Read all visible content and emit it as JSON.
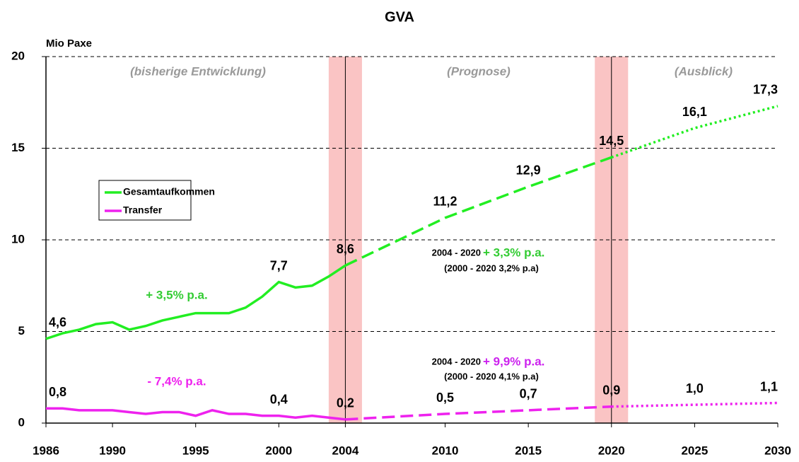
{
  "chart_data": {
    "type": "line",
    "title": "GVA",
    "y_label": "Mio Paxe",
    "xlim": [
      1986,
      2030
    ],
    "xticks": [
      1986,
      1990,
      1995,
      2000,
      2004,
      2010,
      2015,
      2020,
      2025,
      2030
    ],
    "ylim": [
      0,
      20
    ],
    "yticks": [
      0,
      5,
      10,
      15,
      20
    ],
    "grid": true,
    "vlines": [
      2004,
      2020
    ],
    "line_styles": [
      "solid",
      "dashed",
      "dotted"
    ],
    "shaded_bands": [
      [
        2003,
        2005
      ],
      [
        2019,
        2021
      ]
    ],
    "band_color": "#fac4c4",
    "legend": "left",
    "series": [
      {
        "name": "Gesamtaufkommen",
        "color": "#22ee22",
        "x": [
          1986,
          1987,
          1988,
          1989,
          1990,
          1991,
          1992,
          1993,
          1994,
          1995,
          1996,
          1997,
          1998,
          1999,
          2000,
          2001,
          2002,
          2003,
          2004,
          2010,
          2015,
          2020,
          2025,
          2030
        ],
        "values": [
          4.6,
          4.9,
          5.1,
          5.4,
          5.5,
          5.1,
          5.3,
          5.6,
          5.8,
          6.0,
          6.0,
          6.0,
          6.3,
          6.9,
          7.7,
          7.4,
          7.5,
          8.0,
          8.6,
          11.2,
          12.9,
          14.5,
          16.1,
          17.3
        ],
        "value_labels": [
          "4,6",
          null,
          null,
          null,
          null,
          null,
          null,
          null,
          null,
          null,
          null,
          null,
          null,
          null,
          "7,7",
          null,
          null,
          null,
          "8,6",
          "11,2",
          "12,9",
          "14,5",
          "16,1",
          "17,3"
        ]
      },
      {
        "name": "Transfer",
        "color": "#ee22ee",
        "x": [
          1986,
          1987,
          1988,
          1989,
          1990,
          1991,
          1992,
          1993,
          1994,
          1995,
          1996,
          1997,
          1998,
          1999,
          2000,
          2001,
          2002,
          2003,
          2004,
          2010,
          2015,
          2020,
          2025,
          2030
        ],
        "values": [
          0.8,
          0.8,
          0.7,
          0.7,
          0.7,
          0.6,
          0.5,
          0.6,
          0.6,
          0.4,
          0.7,
          0.5,
          0.5,
          0.4,
          0.4,
          0.3,
          0.4,
          0.3,
          0.2,
          0.5,
          0.7,
          0.9,
          1.0,
          1.1
        ],
        "value_labels": [
          "0,8",
          null,
          null,
          null,
          null,
          null,
          null,
          null,
          null,
          null,
          null,
          null,
          null,
          null,
          "0,4",
          null,
          null,
          null,
          "0,2",
          "0,5",
          "0,7",
          "0,9",
          "1,0",
          "1,1"
        ]
      }
    ],
    "annotations": [
      {
        "text": "(bisherige Entwicklung)",
        "color": "#999999"
      },
      {
        "text": "(Prognose)",
        "color": "#999999"
      },
      {
        "text": "(Ausblick)",
        "color": "#999999"
      },
      {
        "text": "+ 3,5% p.a.",
        "color": "#33cc33"
      },
      {
        "text": "- 7,4% p.a.",
        "color": "#ee22ee"
      },
      {
        "text": "2004 - 2020",
        "color": "#000000"
      },
      {
        "text": "+ 3,3% p.a.",
        "color": "#33cc33"
      },
      {
        "text": "(2000 - 2020 3,2% p.a)",
        "color": "#000000"
      },
      {
        "text": "2004 - 2020",
        "color": "#000000"
      },
      {
        "text": "+ 9,9% p.a.",
        "color": "#cc22ee"
      },
      {
        "text": "(2000 - 2020 4,1% p.a)",
        "color": "#000000"
      }
    ]
  }
}
